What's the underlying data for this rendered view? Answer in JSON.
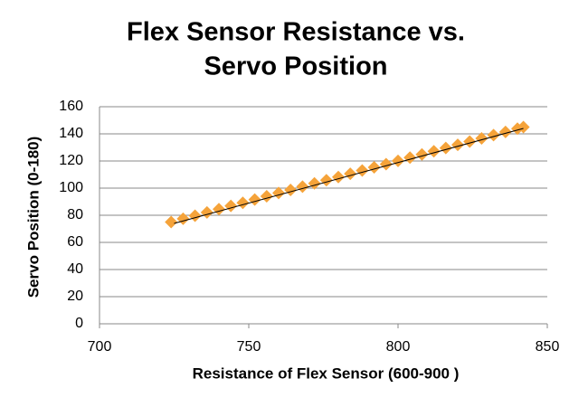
{
  "chart_data": {
    "type": "scatter",
    "title": [
      "Flex Sensor Resistance vs.",
      "Servo Position"
    ],
    "x_label": "Resistance of Flex Sensor (600-900 )",
    "y_label": "Servo  Position  (0-180)",
    "series": [
      {
        "color": "#f5a33a",
        "x": [
          724,
          728,
          732,
          736,
          740,
          744,
          748,
          752,
          756,
          760,
          764,
          768,
          772,
          776,
          780,
          784,
          788,
          792,
          796,
          800,
          804,
          808,
          812,
          816,
          820,
          824,
          828,
          832,
          836,
          840,
          842
        ],
        "values": [
          75.0,
          77.4,
          79.7,
          82.1,
          84.5,
          86.9,
          89.2,
          91.6,
          94.0,
          96.4,
          98.7,
          101.1,
          103.5,
          105.8,
          108.2,
          110.6,
          113.0,
          115.3,
          117.7,
          120.1,
          122.5,
          124.8,
          127.2,
          129.6,
          131.9,
          134.3,
          136.7,
          139.1,
          141.4,
          143.8,
          145.0
        ]
      }
    ],
    "trendline": {
      "color": "#000000",
      "x": [
        725,
        842
      ],
      "values": [
        74,
        144
      ]
    },
    "xlim": [
      700,
      850
    ],
    "xticks": [
      700,
      750,
      800,
      850
    ],
    "ylim": [
      0,
      160
    ],
    "yticks": [
      0,
      20,
      40,
      60,
      80,
      100,
      120,
      140,
      160
    ],
    "grid": true
  }
}
